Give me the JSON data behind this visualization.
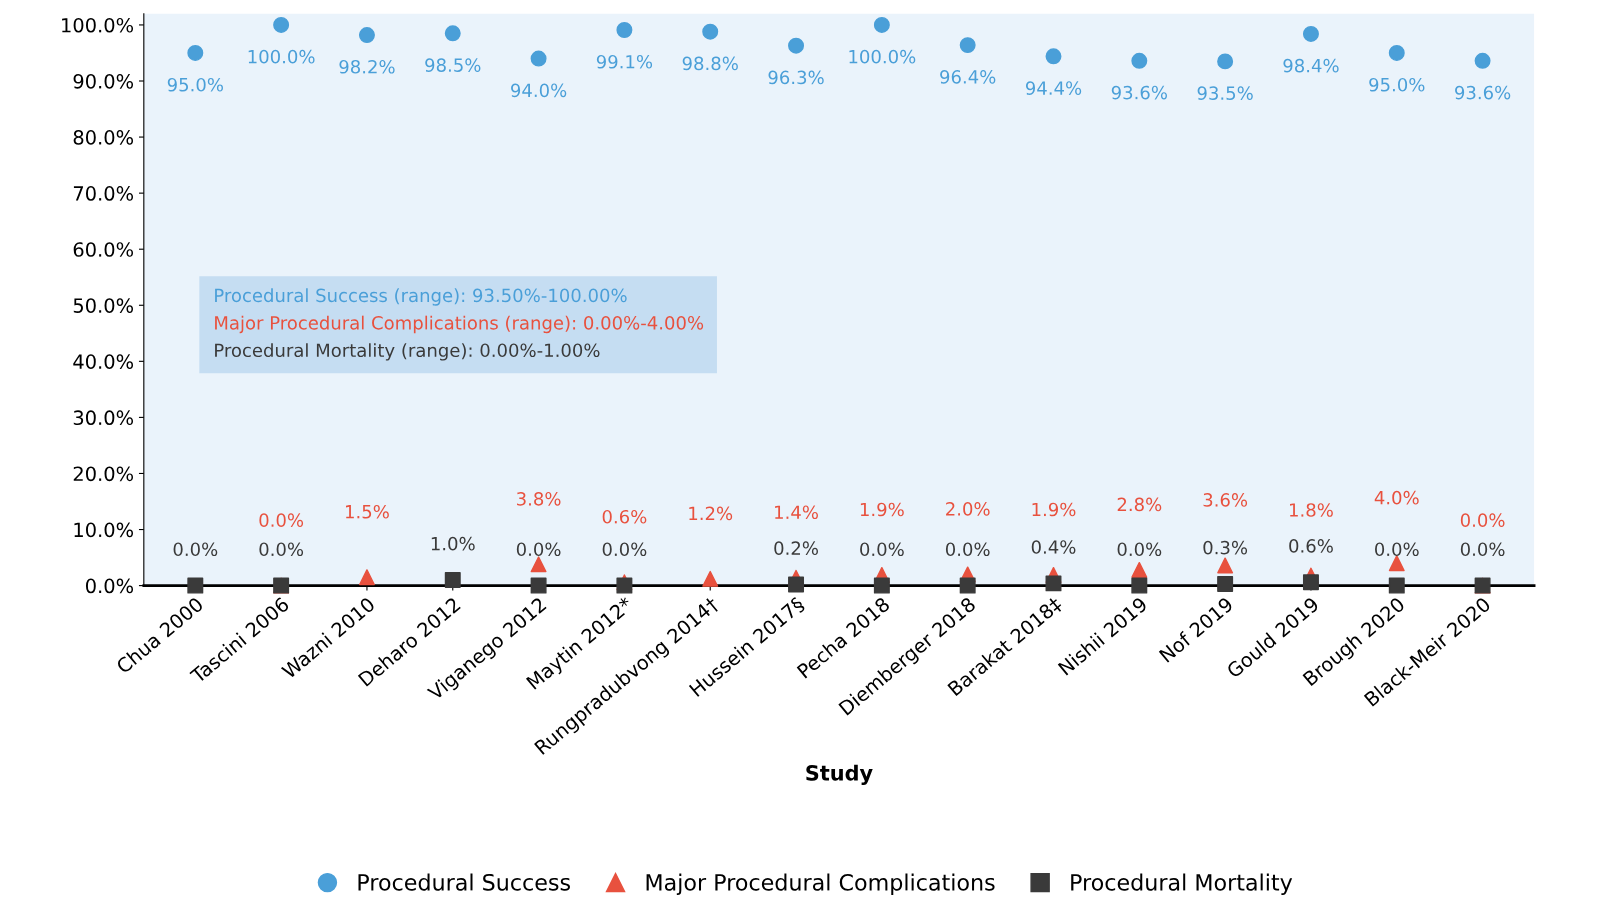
{
  "chart_data": {
    "type": "scatter",
    "xlabel": "Study",
    "categories": [
      "Chua 2000",
      "Tascini 2006",
      "Wazni 2010",
      "Deharo 2012",
      "Viganego 2012",
      "Maytin 2012*",
      "Rungpradubvong 2014†",
      "Hussein 2017§",
      "Pecha 2018",
      "Diemberger 2018",
      "Barakat 2018‡",
      "Nishii 2019",
      "Nof 2019",
      "Gould 2019",
      "Brough 2020",
      "Black-Meir 2020"
    ],
    "series": [
      {
        "name": "Procedural Success",
        "color": "#4a9fd8",
        "marker": "circle",
        "values": [
          95.0,
          100.0,
          98.2,
          98.5,
          94.0,
          99.1,
          98.8,
          96.3,
          100.0,
          96.4,
          94.4,
          93.6,
          93.5,
          98.4,
          95.0,
          93.6
        ],
        "value_labels": [
          "95.0%",
          "100.0%",
          "98.2%",
          "98.5%",
          "94.0%",
          "99.1%",
          "98.8%",
          "96.3%",
          "100.0%",
          "96.4%",
          "94.4%",
          "93.6%",
          "93.5%",
          "98.4%",
          "95.0%",
          "93.6%"
        ]
      },
      {
        "name": "Major Procedural Complications",
        "color": "#e8513e",
        "marker": "triangle",
        "values": [
          null,
          0.0,
          1.5,
          null,
          3.8,
          0.6,
          1.2,
          1.4,
          1.9,
          2.0,
          1.9,
          2.8,
          3.6,
          1.8,
          4.0,
          0.0
        ],
        "value_labels": [
          null,
          "0.0%",
          "1.5%",
          null,
          "3.8%",
          "0.6%",
          "1.2%",
          "1.4%",
          "1.9%",
          "2.0%",
          "1.9%",
          "2.8%",
          "3.6%",
          "1.8%",
          "4.0%",
          "0.0%"
        ]
      },
      {
        "name": "Procedural Mortality",
        "color": "#3a3a3a",
        "marker": "square",
        "values": [
          0.0,
          0.0,
          null,
          1.0,
          0.0,
          0.0,
          null,
          0.2,
          0.0,
          0.0,
          0.4,
          0.0,
          0.3,
          0.6,
          0.0,
          0.0
        ],
        "value_labels": [
          "0.0%",
          "0.0%",
          null,
          "1.0%",
          "0.0%",
          "0.0%",
          null,
          "0.2%",
          "0.0%",
          "0.0%",
          "0.4%",
          "0.0%",
          "0.3%",
          "0.6%",
          "0.0%",
          "0.0%"
        ]
      }
    ],
    "ylim": [
      0,
      102
    ],
    "yticks": [
      {
        "value": 0,
        "label": "0.0%"
      },
      {
        "value": 10,
        "label": "10.0%"
      },
      {
        "value": 20,
        "label": "20.0%"
      },
      {
        "value": 30,
        "label": "30.0%"
      },
      {
        "value": 40,
        "label": "40.0%"
      },
      {
        "value": 50,
        "label": "50.0%"
      },
      {
        "value": 60,
        "label": "60.0%"
      },
      {
        "value": 70,
        "label": "70.0%"
      },
      {
        "value": 80,
        "label": "80.0%"
      },
      {
        "value": 90,
        "label": "90.0%"
      },
      {
        "value": 100,
        "label": "100.0%"
      }
    ],
    "annotations": [
      "Procedural Success (range): 93.50%-100.00%",
      "Major Procedural Complications (range): 0.00%-4.00%",
      "Procedural Mortality (range): 0.00%-1.00%"
    ],
    "grid": false,
    "legend": "bottom"
  }
}
